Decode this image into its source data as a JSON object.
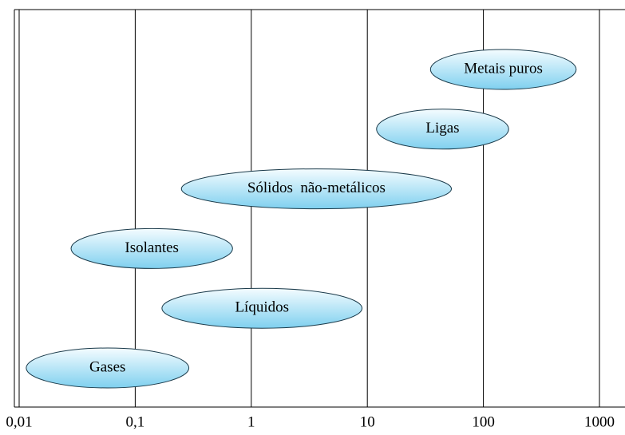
{
  "chart_data": {
    "type": "range",
    "categories": [
      "Metais puros",
      "Ligas",
      "Sólidos  não-metálicos",
      "Isolantes",
      "Líquidos",
      "Gases"
    ],
    "low": [
      35,
      12,
      0.25,
      0.028,
      0.17,
      0.0115
    ],
    "high": [
      630,
      165,
      53,
      0.69,
      9,
      0.29
    ],
    "color": "#8fd8f2",
    "xscale": "log",
    "xlim": [
      0.01,
      1660
    ],
    "xticks": [
      {
        "value": 0.01,
        "label": "0,01"
      },
      {
        "value": 0.1,
        "label": "0,1"
      },
      1,
      10,
      100,
      1000
    ],
    "grid": true
  }
}
